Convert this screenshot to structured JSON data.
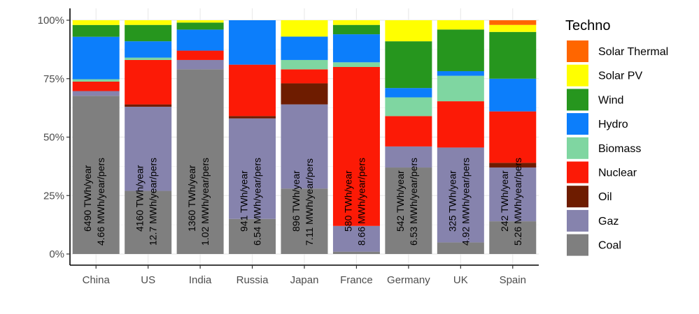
{
  "chart_data": {
    "type": "bar",
    "stacked": true,
    "normalized": true,
    "categories": [
      "China",
      "US",
      "India",
      "Russia",
      "Japan",
      "France",
      "Germany",
      "UK",
      "Spain"
    ],
    "bar_labels_total": [
      "6490 TWh/year",
      "4160 TWh/year",
      "1360 TWh/year",
      "941 TWh/year",
      "896 TWh/year",
      "580 TWh/year",
      "542 TWh/year",
      "325 TWh/year",
      "242 TWh/year"
    ],
    "bar_labels_per_person": [
      "4.66 MWh/year/pers",
      "12.7 MWh/year/pers",
      "1.02 MWh/year/pers",
      "6.54 MWh/year/pers",
      "7.11 MWh/year/pers",
      "8.66 MWh/year/pers",
      "6.53 MWh/year/pers",
      "4.92 MWh/year/pers",
      "5.26 MWh/year/pers"
    ],
    "series": [
      {
        "name": "Coal",
        "color": "#7f7f7f",
        "values": [
          67,
          27,
          79,
          15,
          28,
          1,
          37,
          5,
          14
        ]
      },
      {
        "name": "Gaz",
        "color": "#8683ad",
        "values": [
          2,
          36,
          4,
          43,
          36,
          11,
          9,
          41,
          23
        ]
      },
      {
        "name": "Oil",
        "color": "#6e1c00",
        "values": [
          0,
          1,
          0,
          1,
          9,
          0,
          0,
          0,
          2
        ]
      },
      {
        "name": "Nuclear",
        "color": "#fc1a06",
        "values": [
          4,
          19,
          4,
          22,
          6,
          68,
          13,
          20,
          22
        ]
      },
      {
        "name": "Biomass",
        "color": "#7fd6a1",
        "values": [
          1,
          1,
          0,
          0,
          4,
          2,
          8,
          11,
          0
        ]
      },
      {
        "name": "Hydro",
        "color": "#0c7efb",
        "values": [
          18,
          7,
          9,
          19,
          10,
          12,
          4,
          2,
          14
        ]
      },
      {
        "name": "Wind",
        "color": "#26961e",
        "values": [
          5,
          7,
          3,
          0,
          0,
          4,
          20,
          18,
          20
        ]
      },
      {
        "name": "Solar PV",
        "color": "#ffff00",
        "values": [
          2,
          2,
          1,
          0,
          7,
          2,
          9,
          4,
          3
        ]
      },
      {
        "name": "Solar Thermal",
        "color": "#ff6600",
        "values": [
          0,
          0,
          0,
          0,
          0,
          0,
          0,
          0,
          2
        ]
      }
    ],
    "ylim": [
      0,
      100
    ],
    "yticks": [
      0,
      25,
      50,
      75,
      100
    ],
    "ytick_labels": [
      "0%",
      "25%",
      "50%",
      "75%",
      "100%"
    ],
    "legend": {
      "title": "Techno",
      "position": "right"
    },
    "grid": true
  }
}
